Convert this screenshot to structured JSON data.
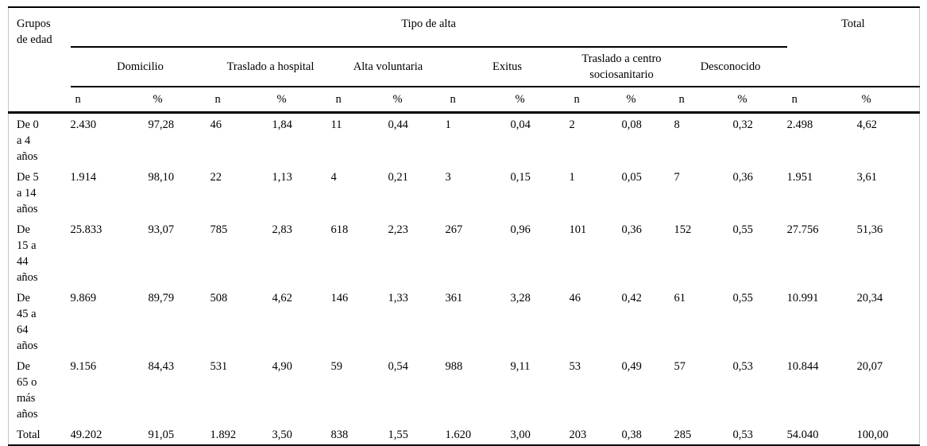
{
  "table": {
    "corner_label": "Grupos\nde edad",
    "group_header": "Tipo de alta",
    "total_header": "Total",
    "categories": [
      "Domicilio",
      "Traslado a hospital",
      "Alta voluntaria",
      "Exitus",
      "Traslado a centro\nsociosanitario",
      "Desconocido"
    ],
    "subheaders": {
      "n": "n",
      "pct": "%"
    },
    "rows": [
      {
        "label": "De 0\na 4\naños",
        "values": [
          "2.430",
          "97,28",
          "46",
          "1,84",
          "11",
          "0,44",
          "1",
          "0,04",
          "2",
          "0,08",
          "8",
          "0,32",
          "2.498",
          "4,62"
        ]
      },
      {
        "label": "De 5\na 14\naños",
        "values": [
          "1.914",
          "98,10",
          "22",
          "1,13",
          "4",
          "0,21",
          "3",
          "0,15",
          "1",
          "0,05",
          "7",
          "0,36",
          "1.951",
          "3,61"
        ]
      },
      {
        "label": "De\n15 a\n44\naños",
        "values": [
          "25.833",
          "93,07",
          "785",
          "2,83",
          "618",
          "2,23",
          "267",
          "0,96",
          "101",
          "0,36",
          "152",
          "0,55",
          "27.756",
          "51,36"
        ]
      },
      {
        "label": "De\n45 a\n64\naños",
        "values": [
          "9.869",
          "89,79",
          "508",
          "4,62",
          "146",
          "1,33",
          "361",
          "3,28",
          "46",
          "0,42",
          "61",
          "0,55",
          "10.991",
          "20,34"
        ]
      },
      {
        "label": "De\n65 o\nmás\naños",
        "values": [
          "9.156",
          "84,43",
          "531",
          "4,90",
          "59",
          "0,54",
          "988",
          "9,11",
          "53",
          "0,49",
          "57",
          "0,53",
          "10.844",
          "20,07"
        ]
      },
      {
        "label": "Total",
        "values": [
          "49.202",
          "91,05",
          "1.892",
          "3,50",
          "838",
          "1,55",
          "1.620",
          "3,00",
          "203",
          "0,38",
          "285",
          "0,53",
          "54.040",
          "100,00"
        ]
      }
    ]
  }
}
